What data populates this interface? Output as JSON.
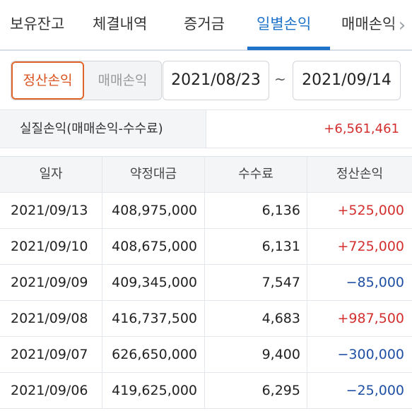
{
  "tabs": [
    {
      "label": "보유잔고",
      "active": false
    },
    {
      "label": "체결내역",
      "active": false
    },
    {
      "label": "증거금",
      "active": false
    },
    {
      "label": "일별손익",
      "active": true
    },
    {
      "label": "매매손익",
      "active": false
    }
  ],
  "tab_scroll_icon": "chevron-right-icon",
  "filter": {
    "options": [
      "정산손익",
      "매매손익"
    ],
    "selected": "정산손익",
    "start_date": "2021/08/23",
    "separator": "~",
    "end_date": "2021/09/14"
  },
  "summary": {
    "label": "실질손익(매매손익-수수료)",
    "value": "+6,561,461"
  },
  "table": {
    "headers": [
      "일자",
      "약정대금",
      "수수료",
      "정산손익"
    ],
    "rows": [
      {
        "date": "2021/09/13",
        "amount": "408,975,000",
        "fee": "6,136",
        "pnl": "+525,000",
        "sign": "pos"
      },
      {
        "date": "2021/09/10",
        "amount": "408,675,000",
        "fee": "6,131",
        "pnl": "+725,000",
        "sign": "pos"
      },
      {
        "date": "2021/09/09",
        "amount": "409,345,000",
        "fee": "7,547",
        "pnl": "−85,000",
        "sign": "neg"
      },
      {
        "date": "2021/09/08",
        "amount": "416,737,500",
        "fee": "4,683",
        "pnl": "+987,500",
        "sign": "pos"
      },
      {
        "date": "2021/09/07",
        "amount": "626,650,000",
        "fee": "9,400",
        "pnl": "−300,000",
        "sign": "neg"
      },
      {
        "date": "2021/09/06",
        "amount": "419,625,000",
        "fee": "6,295",
        "pnl": "−25,000",
        "sign": "neg"
      }
    ]
  },
  "colors": {
    "accent_tab": "#1e73c8",
    "accent_segment": "#e0652a",
    "positive": "#d32f2f",
    "negative": "#1f4fa3"
  }
}
